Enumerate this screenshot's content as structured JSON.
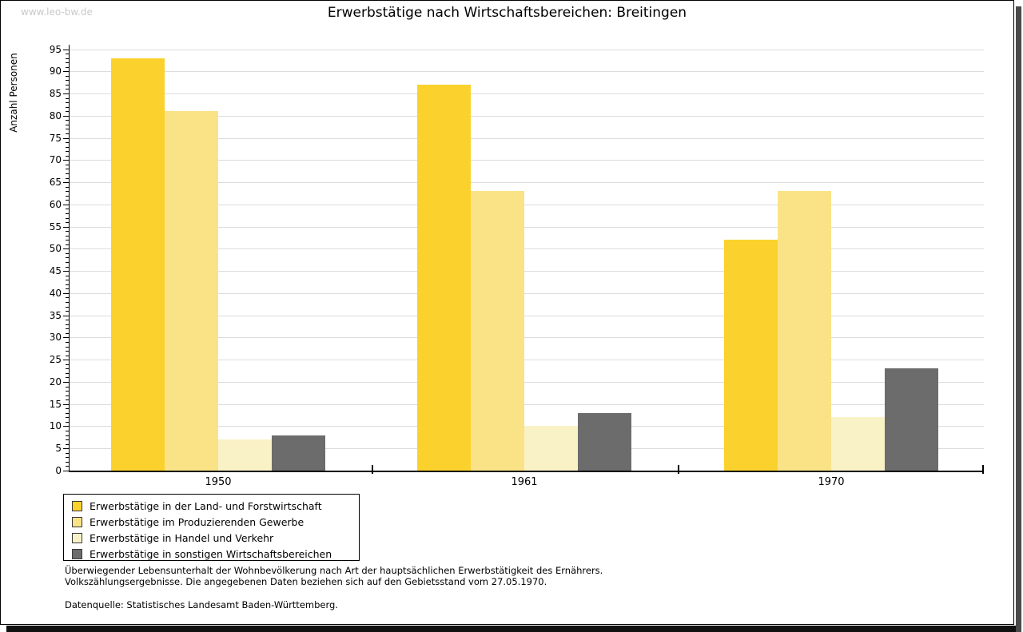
{
  "watermark": "www.leo-bw.de",
  "title": "Erwerbstätige nach Wirtschaftsbereichen: Breitingen",
  "chart_data": {
    "type": "bar",
    "title": "Erwerbstätige nach Wirtschaftsbereichen: Breitingen",
    "xlabel": "",
    "ylabel": "Anzahl Personen",
    "categories": [
      "1950",
      "1961",
      "1970"
    ],
    "series": [
      {
        "name": "Erwerbstätige in der Land- und Forstwirtschaft",
        "color": "#fbd22d",
        "values": [
          93,
          87,
          52
        ]
      },
      {
        "name": "Erwerbstätige im Produzierenden Gewerbe",
        "color": "#fae387",
        "values": [
          81,
          63,
          63
        ]
      },
      {
        "name": "Erwerbstätige in Handel und Verkehr",
        "color": "#faf2c7",
        "values": [
          7,
          10,
          12
        ]
      },
      {
        "name": "Erwerbstätige in sonstigen Wirtschaftsbereichen",
        "color": "#6c6c6c",
        "values": [
          8,
          13,
          23
        ]
      }
    ],
    "ylim": [
      0,
      95
    ],
    "ytick_major_step": 5,
    "ytick_minor_step": 1,
    "grid": true,
    "legend_position": "bottom-left"
  },
  "notes": {
    "line1": "Überwiegender Lebensunterhalt der Wohnbevölkerung nach Art der hauptsächlichen Erwerbstätigkeit des Ernährers.",
    "line2": "Volkszählungsergebnisse. Die angegebenen Daten beziehen sich auf den Gebietsstand vom 27.05.1970.",
    "source": "Datenquelle: Statistisches Landesamt Baden-Württemberg."
  },
  "colors": {
    "grid": "#dcdcdc",
    "axis": "#000000",
    "watermark": "#c9c9c9",
    "shadow_right": "#4a4a4a",
    "shadow_bottom": "#111111"
  }
}
